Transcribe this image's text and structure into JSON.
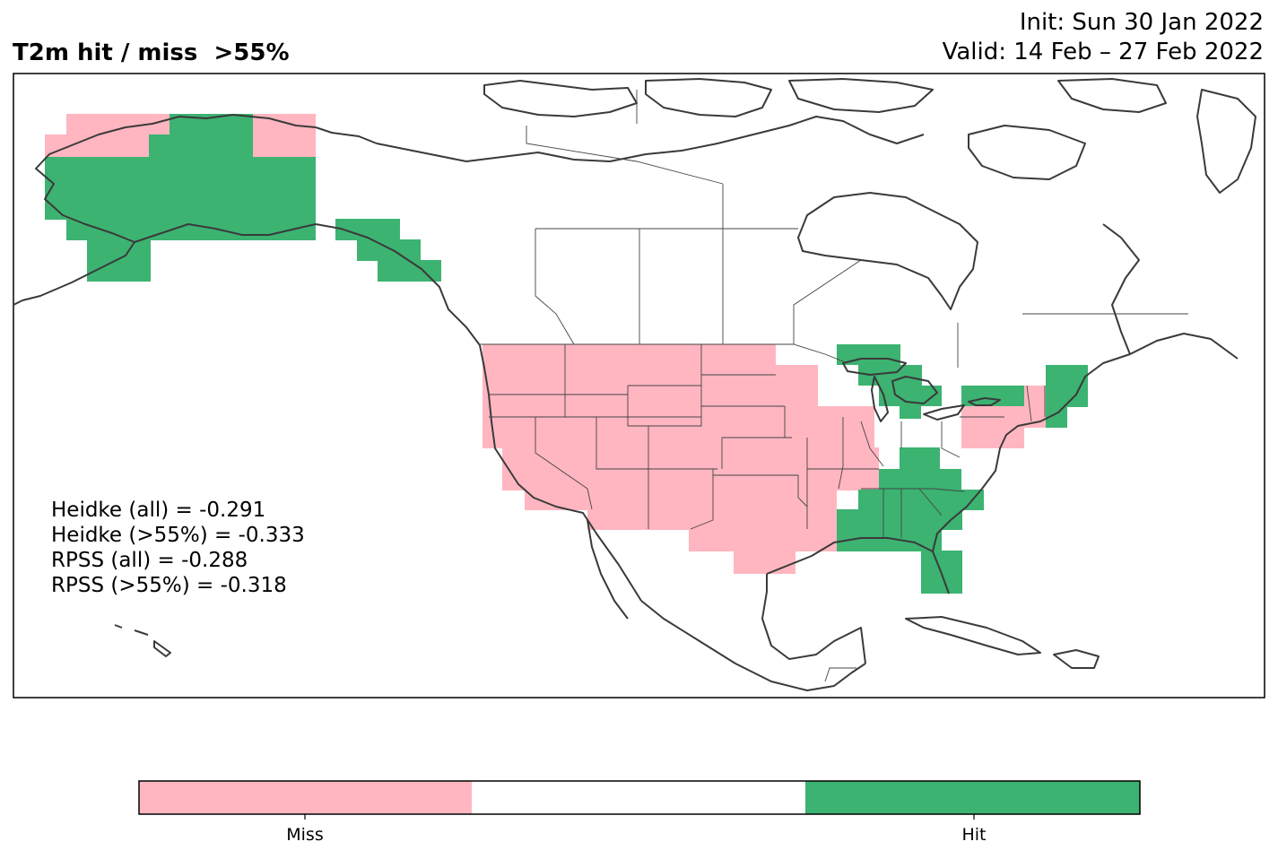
{
  "title": "T2m hit / miss  >55%",
  "init": "Init: Sun 30 Jan 2022",
  "valid": "Valid: 14 Feb – 27 Feb 2022",
  "stats": [
    "Heidke (all) = -0.291",
    "Heidke (>55%) = -0.333",
    "RPSS (all) = -0.288",
    "RPSS (>55%) = -0.318"
  ],
  "legend": {
    "miss_label": "Miss",
    "hit_label": "Hit",
    "colors": {
      "miss": "#ffb6c1",
      "neutral": "#ffffff",
      "hit": "#3cb371"
    }
  }
}
